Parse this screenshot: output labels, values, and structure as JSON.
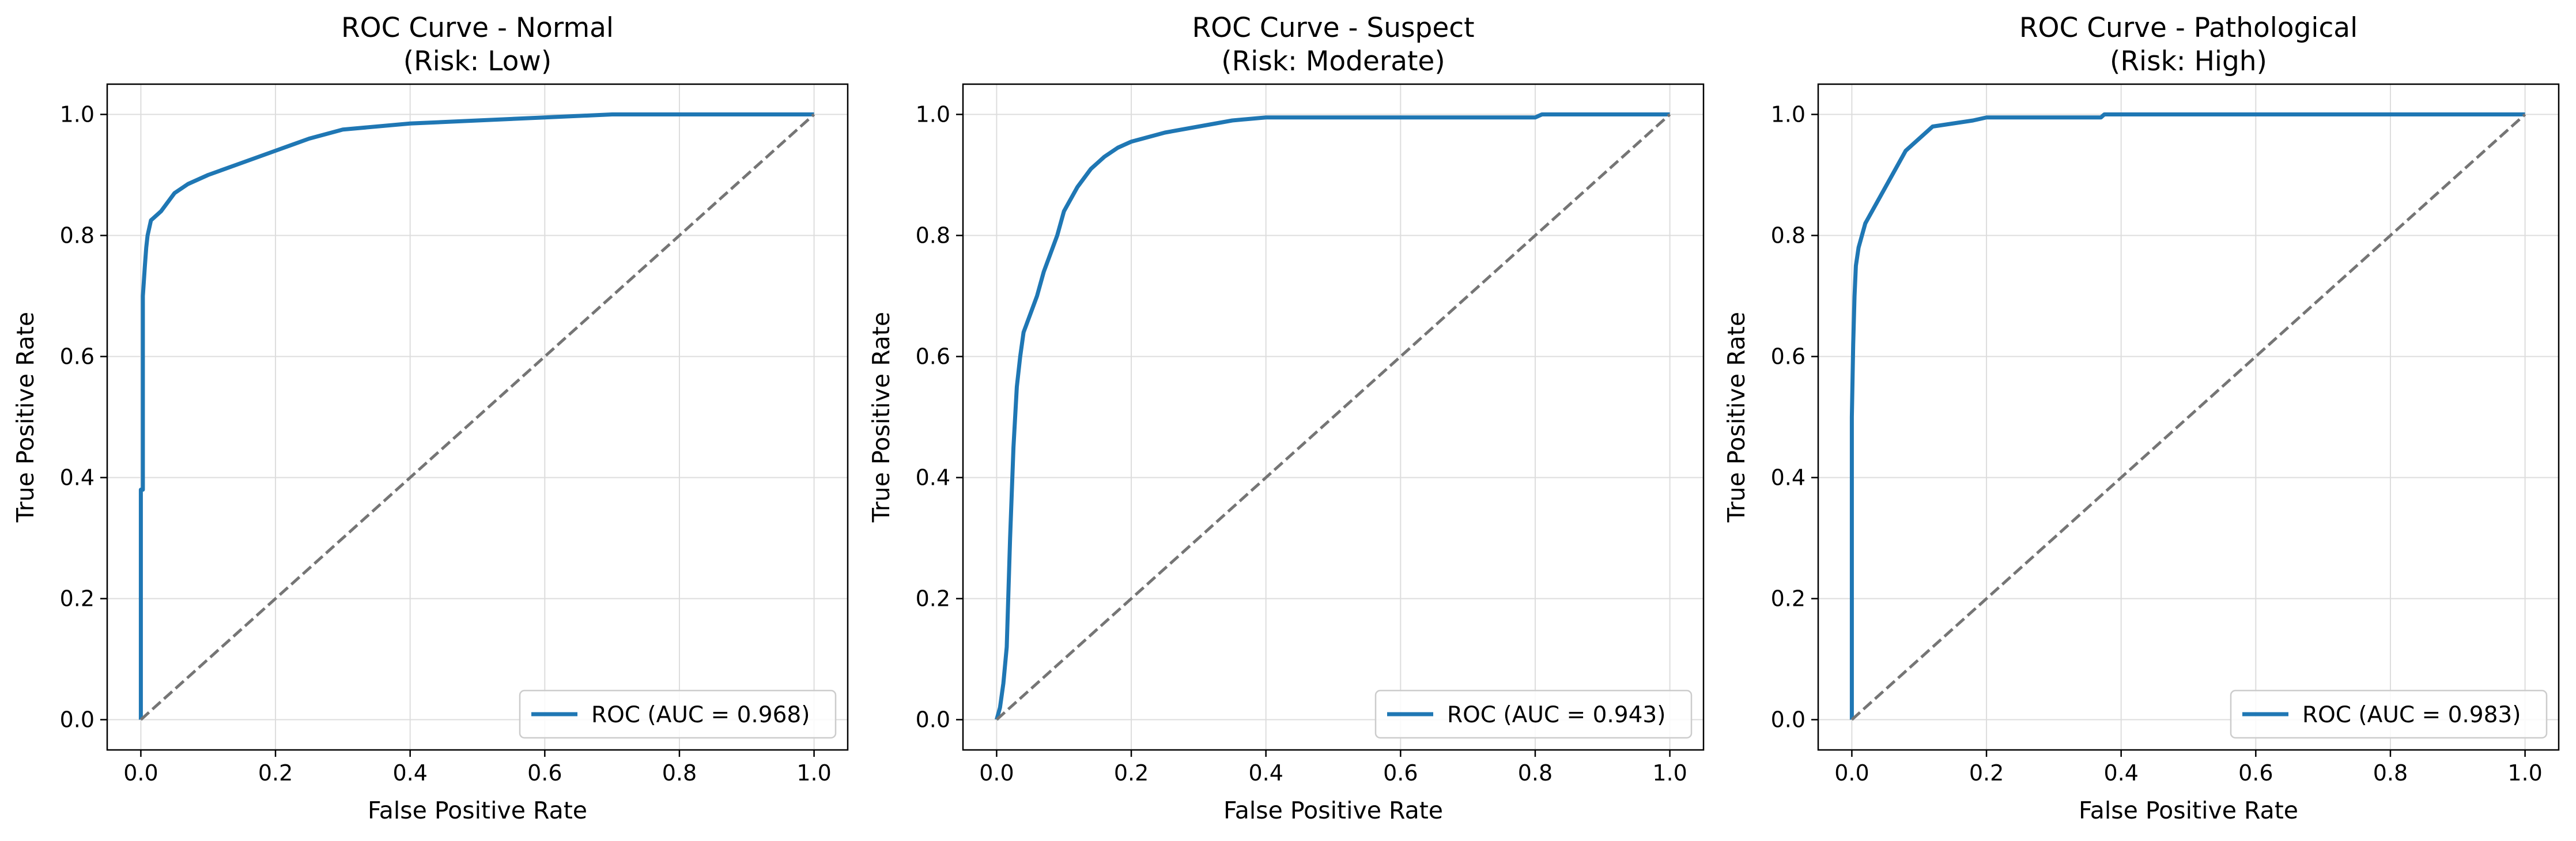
{
  "chart_data": [
    {
      "type": "line",
      "title": "ROC Curve - Normal",
      "subtitle": "(Risk: Low)",
      "xlabel": "False Positive Rate",
      "ylabel": "True Positive Rate",
      "xlim": [
        -0.05,
        1.05
      ],
      "ylim": [
        -0.05,
        1.05
      ],
      "xticks": [
        "0.0",
        "0.2",
        "0.4",
        "0.6",
        "0.8",
        "1.0"
      ],
      "yticks": [
        "0.0",
        "0.2",
        "0.4",
        "0.6",
        "0.8",
        "1.0"
      ],
      "grid": true,
      "legend_position": "lower-right",
      "series": [
        {
          "name": "ROC (AUC = 0.968)",
          "color": "#1f77b4",
          "x": [
            0.0,
            0.0,
            0.003,
            0.003,
            0.006,
            0.008,
            0.01,
            0.015,
            0.02,
            0.03,
            0.05,
            0.07,
            0.1,
            0.15,
            0.2,
            0.25,
            0.3,
            0.4,
            0.5,
            0.6,
            0.7,
            0.8,
            0.9,
            1.0
          ],
          "y": [
            0.0,
            0.38,
            0.38,
            0.7,
            0.75,
            0.78,
            0.8,
            0.825,
            0.83,
            0.84,
            0.87,
            0.885,
            0.9,
            0.92,
            0.94,
            0.96,
            0.975,
            0.985,
            0.99,
            0.995,
            1.0,
            1.0,
            1.0,
            1.0
          ]
        },
        {
          "name": "",
          "color": "#757575",
          "dashed": true,
          "x": [
            0,
            1
          ],
          "y": [
            0,
            1
          ]
        }
      ]
    },
    {
      "type": "line",
      "title": "ROC Curve - Suspect",
      "subtitle": "(Risk: Moderate)",
      "xlabel": "False Positive Rate",
      "ylabel": "True Positive Rate",
      "xlim": [
        -0.05,
        1.05
      ],
      "ylim": [
        -0.05,
        1.05
      ],
      "xticks": [
        "0.0",
        "0.2",
        "0.4",
        "0.6",
        "0.8",
        "1.0"
      ],
      "yticks": [
        "0.0",
        "0.2",
        "0.4",
        "0.6",
        "0.8",
        "1.0"
      ],
      "grid": true,
      "legend_position": "lower-right",
      "series": [
        {
          "name": "ROC (AUC = 0.943)",
          "color": "#1f77b4",
          "x": [
            0.0,
            0.005,
            0.01,
            0.015,
            0.02,
            0.025,
            0.03,
            0.035,
            0.04,
            0.05,
            0.06,
            0.07,
            0.08,
            0.09,
            0.1,
            0.12,
            0.14,
            0.16,
            0.18,
            0.2,
            0.25,
            0.3,
            0.35,
            0.4,
            0.5,
            0.6,
            0.7,
            0.8,
            0.81,
            0.9,
            1.0
          ],
          "y": [
            0.0,
            0.02,
            0.06,
            0.12,
            0.3,
            0.45,
            0.55,
            0.6,
            0.64,
            0.67,
            0.7,
            0.74,
            0.77,
            0.8,
            0.84,
            0.88,
            0.91,
            0.93,
            0.945,
            0.955,
            0.97,
            0.98,
            0.99,
            0.995,
            0.995,
            0.995,
            0.995,
            0.995,
            1.0,
            1.0,
            1.0
          ]
        },
        {
          "name": "",
          "color": "#757575",
          "dashed": true,
          "x": [
            0,
            1
          ],
          "y": [
            0,
            1
          ]
        }
      ]
    },
    {
      "type": "line",
      "title": "ROC Curve - Pathological",
      "subtitle": "(Risk: High)",
      "xlabel": "False Positive Rate",
      "ylabel": "True Positive Rate",
      "xlim": [
        -0.05,
        1.05
      ],
      "ylim": [
        -0.05,
        1.05
      ],
      "xticks": [
        "0.0",
        "0.2",
        "0.4",
        "0.6",
        "0.8",
        "1.0"
      ],
      "yticks": [
        "0.0",
        "0.2",
        "0.4",
        "0.6",
        "0.8",
        "1.0"
      ],
      "grid": true,
      "legend_position": "lower-right",
      "series": [
        {
          "name": "ROC (AUC = 0.983)",
          "color": "#1f77b4",
          "x": [
            0.0,
            0.0,
            0.002,
            0.004,
            0.006,
            0.01,
            0.015,
            0.02,
            0.03,
            0.04,
            0.05,
            0.06,
            0.07,
            0.08,
            0.1,
            0.12,
            0.15,
            0.18,
            0.2,
            0.25,
            0.3,
            0.37,
            0.375,
            0.5,
            0.7,
            0.9,
            1.0
          ],
          "y": [
            0.0,
            0.5,
            0.62,
            0.7,
            0.75,
            0.78,
            0.8,
            0.82,
            0.84,
            0.86,
            0.88,
            0.9,
            0.92,
            0.94,
            0.96,
            0.98,
            0.985,
            0.99,
            0.995,
            0.995,
            0.995,
            0.995,
            1.0,
            1.0,
            1.0,
            1.0,
            1.0
          ]
        },
        {
          "name": "",
          "color": "#757575",
          "dashed": true,
          "x": [
            0,
            1
          ],
          "y": [
            0,
            1
          ]
        }
      ]
    }
  ]
}
